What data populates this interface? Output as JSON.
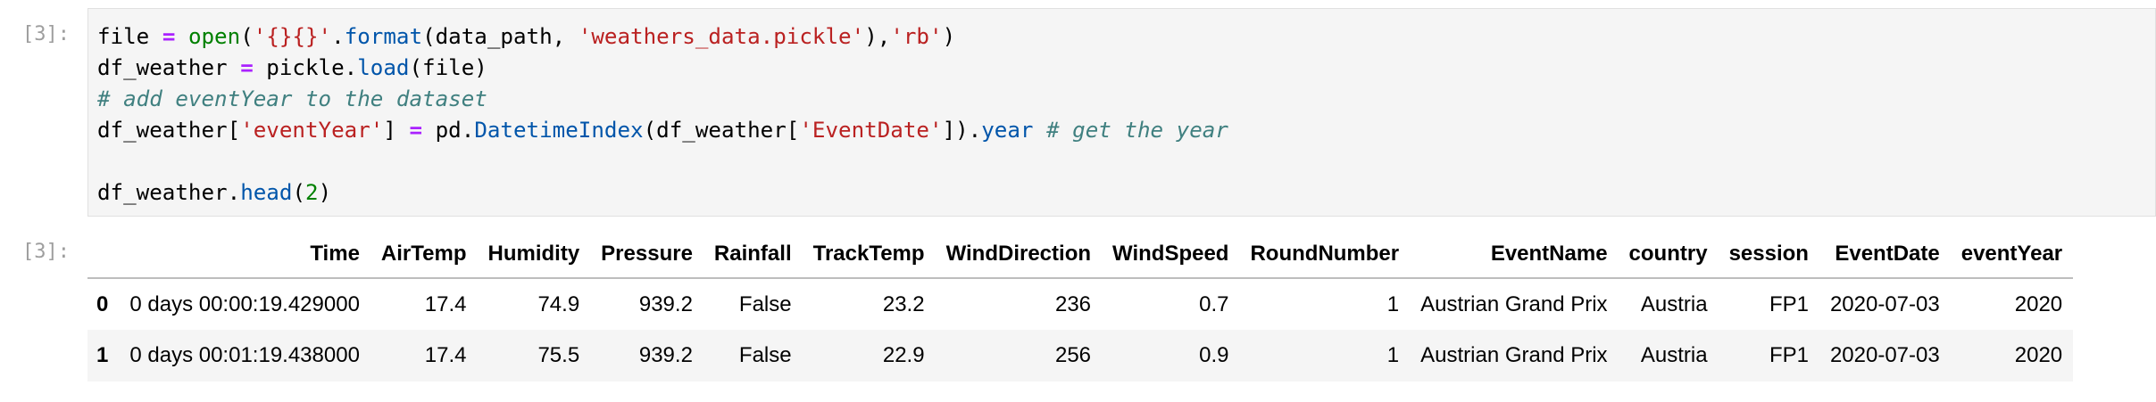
{
  "input_cell": {
    "prompt": "[3]:",
    "lines": [
      [
        {
          "t": "file ",
          "c": ""
        },
        {
          "t": "=",
          "c": "tok-op"
        },
        {
          "t": " ",
          "c": ""
        },
        {
          "t": "open",
          "c": "tok-bi"
        },
        {
          "t": "(",
          "c": ""
        },
        {
          "t": "'{}{}'",
          "c": "tok-str"
        },
        {
          "t": ".",
          "c": ""
        },
        {
          "t": "format",
          "c": "tok-fn"
        },
        {
          "t": "(data_path, ",
          "c": ""
        },
        {
          "t": "'weathers_data.pickle'",
          "c": "tok-str"
        },
        {
          "t": "),",
          "c": ""
        },
        {
          "t": "'rb'",
          "c": "tok-str"
        },
        {
          "t": ")",
          "c": ""
        }
      ],
      [
        {
          "t": "df_weather ",
          "c": ""
        },
        {
          "t": "=",
          "c": "tok-op"
        },
        {
          "t": " pickle.",
          "c": ""
        },
        {
          "t": "load",
          "c": "tok-fn"
        },
        {
          "t": "(file)",
          "c": ""
        }
      ],
      [
        {
          "t": "# add eventYear to the dataset",
          "c": "tok-com"
        }
      ],
      [
        {
          "t": "df_weather[",
          "c": ""
        },
        {
          "t": "'eventYear'",
          "c": "tok-str"
        },
        {
          "t": "] ",
          "c": ""
        },
        {
          "t": "=",
          "c": "tok-op"
        },
        {
          "t": " pd.",
          "c": ""
        },
        {
          "t": "DatetimeIndex",
          "c": "tok-fn"
        },
        {
          "t": "(df_weather[",
          "c": ""
        },
        {
          "t": "'EventDate'",
          "c": "tok-str"
        },
        {
          "t": "]).",
          "c": ""
        },
        {
          "t": "year",
          "c": "tok-fn"
        },
        {
          "t": " ",
          "c": ""
        },
        {
          "t": "# get the year",
          "c": "tok-com"
        }
      ],
      [],
      [
        {
          "t": "df_weather.",
          "c": ""
        },
        {
          "t": "head",
          "c": "tok-fn"
        },
        {
          "t": "(",
          "c": ""
        },
        {
          "t": "2",
          "c": "tok-num"
        },
        {
          "t": ")",
          "c": ""
        }
      ]
    ]
  },
  "output_cell": {
    "prompt": "[3]:",
    "table": {
      "index_header": "",
      "columns": [
        "Time",
        "AirTemp",
        "Humidity",
        "Pressure",
        "Rainfall",
        "TrackTemp",
        "WindDirection",
        "WindSpeed",
        "RoundNumber",
        "EventName",
        "country",
        "session",
        "EventDate",
        "eventYear"
      ],
      "rows": [
        {
          "index": "0",
          "cells": [
            "0 days 00:00:19.429000",
            "17.4",
            "74.9",
            "939.2",
            "False",
            "23.2",
            "236",
            "0.7",
            "1",
            "Austrian Grand Prix",
            "Austria",
            "FP1",
            "2020-07-03",
            "2020"
          ]
        },
        {
          "index": "1",
          "cells": [
            "0 days 00:01:19.438000",
            "17.4",
            "75.5",
            "939.2",
            "False",
            "22.9",
            "256",
            "0.9",
            "1",
            "Austrian Grand Prix",
            "Austria",
            "FP1",
            "2020-07-03",
            "2020"
          ]
        }
      ]
    }
  }
}
